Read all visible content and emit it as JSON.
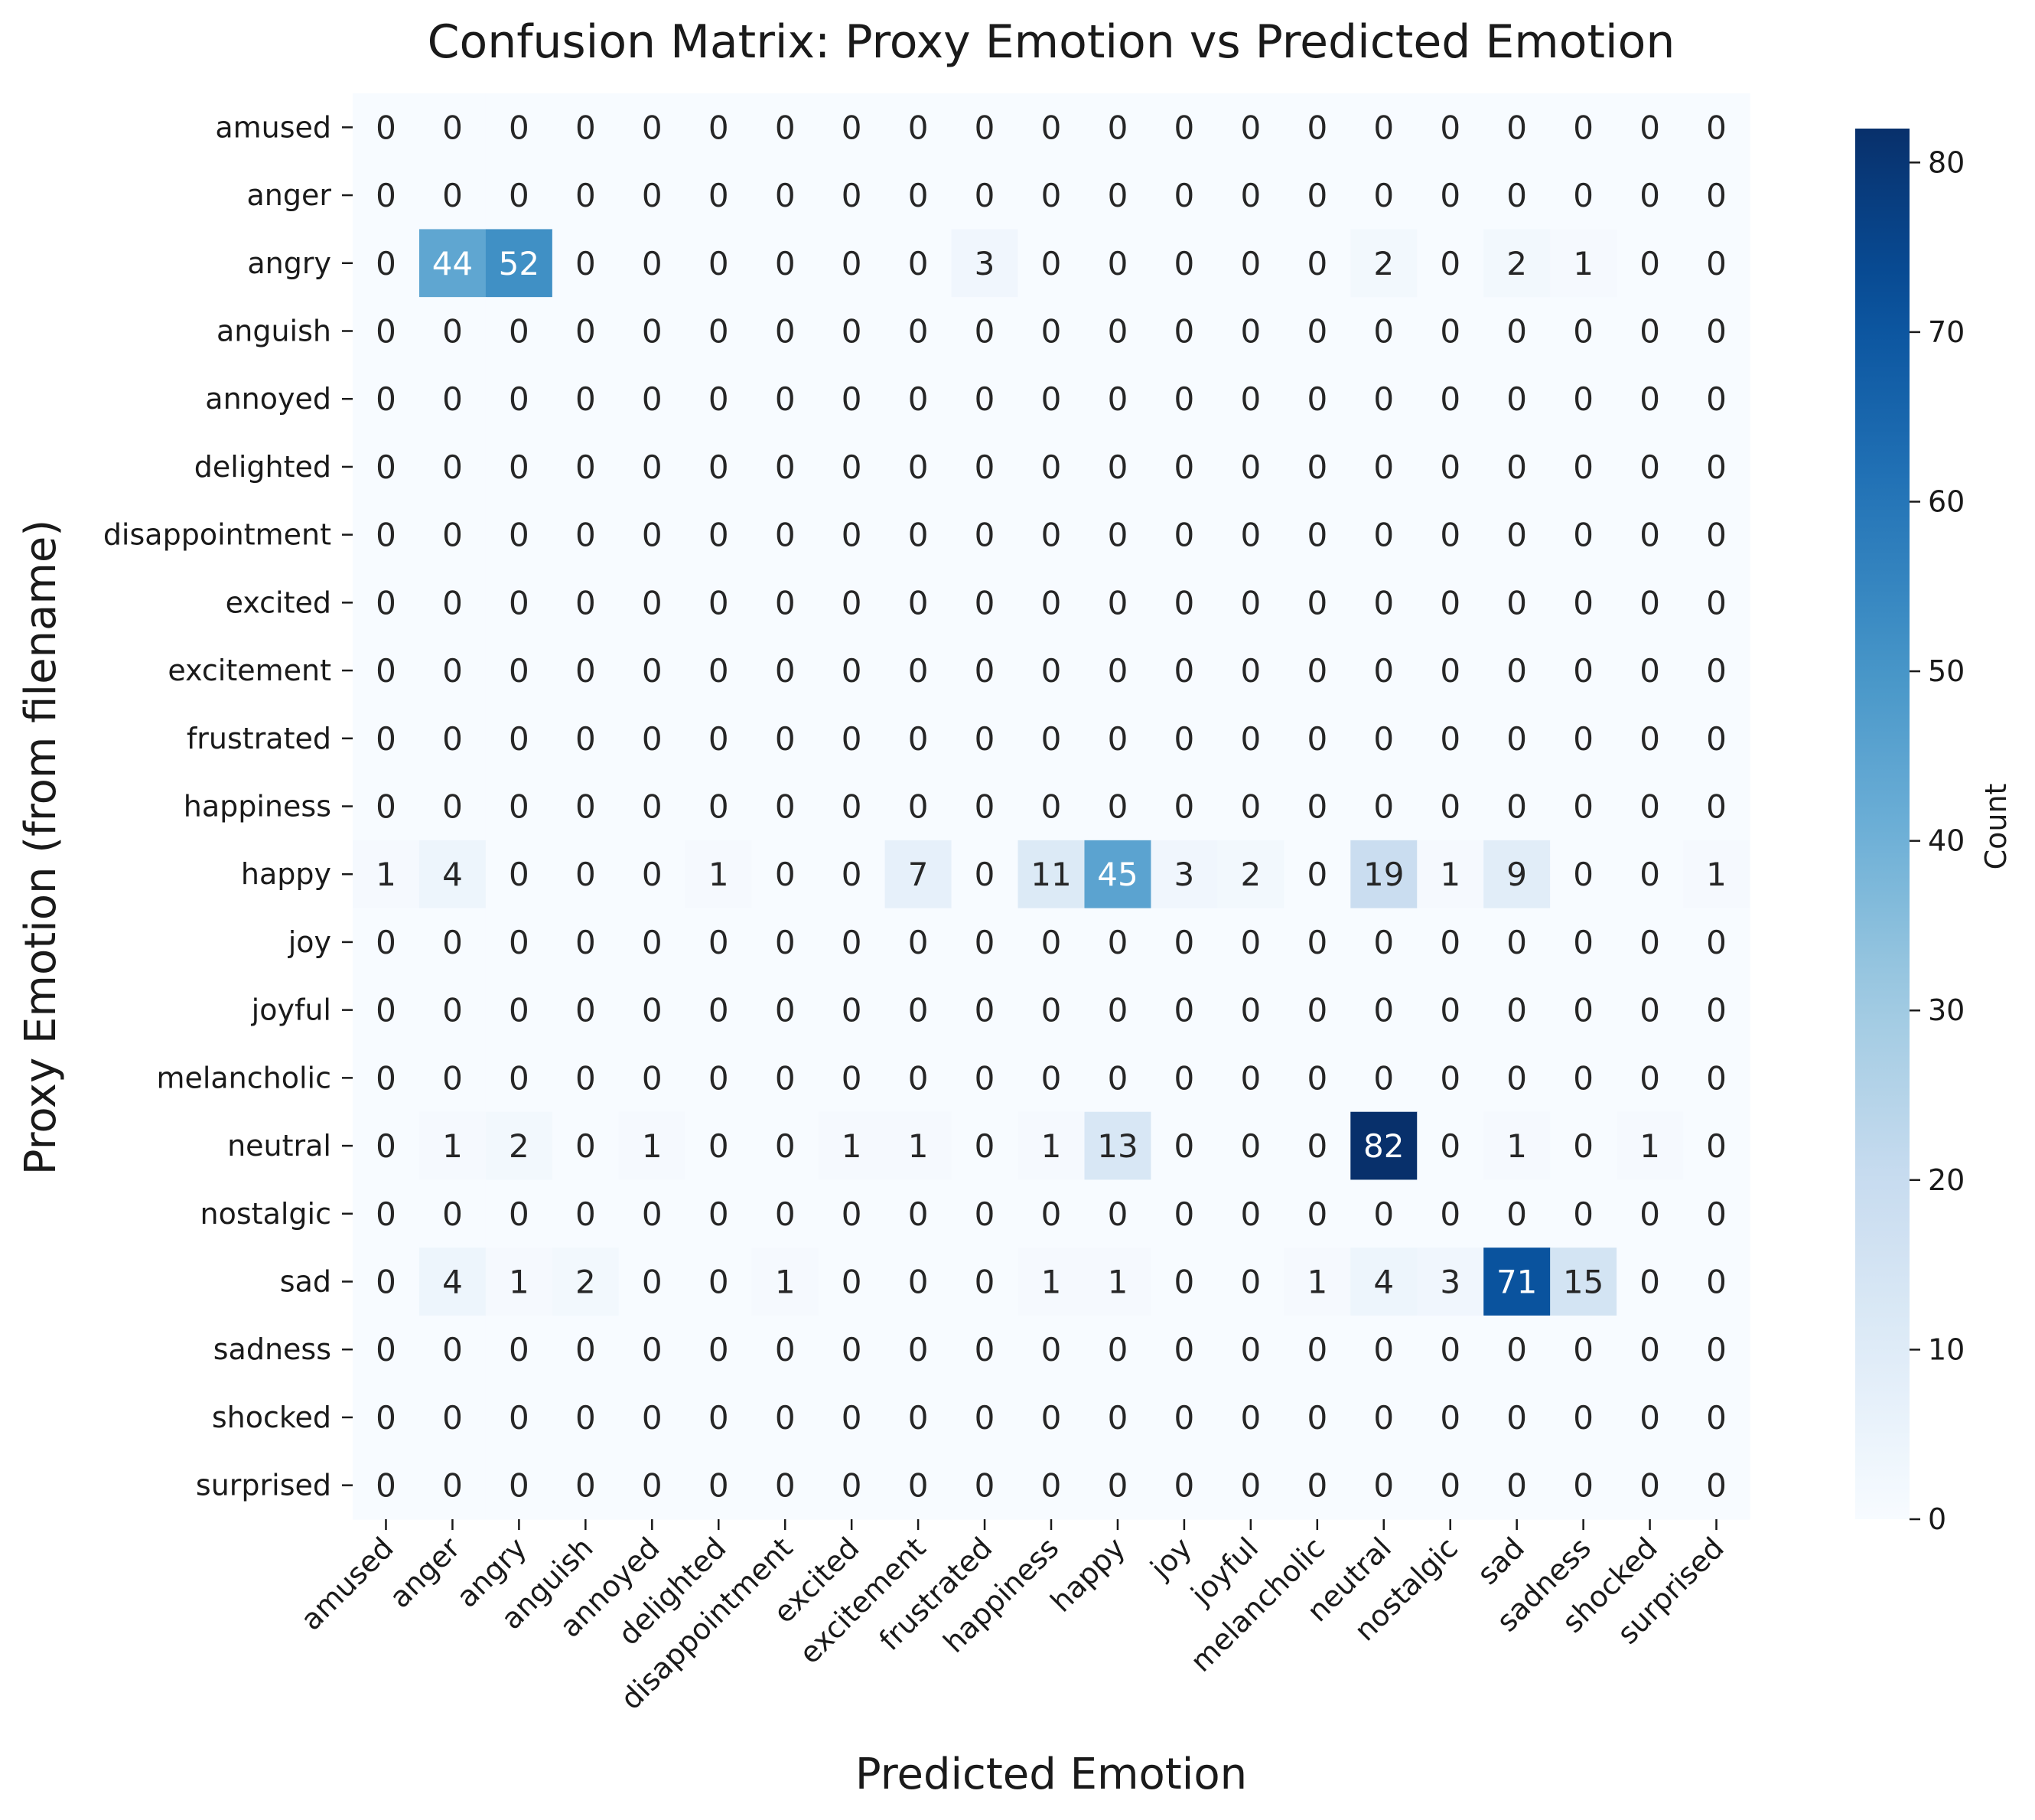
{
  "chart_data": {
    "type": "heatmap",
    "title": "Confusion Matrix: Proxy Emotion vs Predicted Emotion",
    "xlabel": "Predicted Emotion",
    "ylabel": "Proxy Emotion (from filename)",
    "colorbar_label": "Count",
    "colormap": "Blues",
    "color_min": 0,
    "color_max": 82,
    "colorbar_ticks": [
      0,
      10,
      20,
      30,
      40,
      50,
      60,
      70,
      80
    ],
    "x_categories": [
      "amused",
      "anger",
      "angry",
      "anguish",
      "annoyed",
      "delighted",
      "disappointment",
      "excited",
      "excitement",
      "frustrated",
      "happiness",
      "happy",
      "joy",
      "joyful",
      "melancholic",
      "neutral",
      "nostalgic",
      "sad",
      "sadness",
      "shocked",
      "surprised"
    ],
    "y_categories": [
      "amused",
      "anger",
      "angry",
      "anguish",
      "annoyed",
      "delighted",
      "disappointment",
      "excited",
      "excitement",
      "frustrated",
      "happiness",
      "happy",
      "joy",
      "joyful",
      "melancholic",
      "neutral",
      "nostalgic",
      "sad",
      "sadness",
      "shocked",
      "surprised"
    ],
    "matrix": [
      [
        0,
        0,
        0,
        0,
        0,
        0,
        0,
        0,
        0,
        0,
        0,
        0,
        0,
        0,
        0,
        0,
        0,
        0,
        0,
        0,
        0
      ],
      [
        0,
        0,
        0,
        0,
        0,
        0,
        0,
        0,
        0,
        0,
        0,
        0,
        0,
        0,
        0,
        0,
        0,
        0,
        0,
        0,
        0
      ],
      [
        0,
        44,
        52,
        0,
        0,
        0,
        0,
        0,
        0,
        3,
        0,
        0,
        0,
        0,
        0,
        2,
        0,
        2,
        1,
        0,
        0
      ],
      [
        0,
        0,
        0,
        0,
        0,
        0,
        0,
        0,
        0,
        0,
        0,
        0,
        0,
        0,
        0,
        0,
        0,
        0,
        0,
        0,
        0
      ],
      [
        0,
        0,
        0,
        0,
        0,
        0,
        0,
        0,
        0,
        0,
        0,
        0,
        0,
        0,
        0,
        0,
        0,
        0,
        0,
        0,
        0
      ],
      [
        0,
        0,
        0,
        0,
        0,
        0,
        0,
        0,
        0,
        0,
        0,
        0,
        0,
        0,
        0,
        0,
        0,
        0,
        0,
        0,
        0
      ],
      [
        0,
        0,
        0,
        0,
        0,
        0,
        0,
        0,
        0,
        0,
        0,
        0,
        0,
        0,
        0,
        0,
        0,
        0,
        0,
        0,
        0
      ],
      [
        0,
        0,
        0,
        0,
        0,
        0,
        0,
        0,
        0,
        0,
        0,
        0,
        0,
        0,
        0,
        0,
        0,
        0,
        0,
        0,
        0
      ],
      [
        0,
        0,
        0,
        0,
        0,
        0,
        0,
        0,
        0,
        0,
        0,
        0,
        0,
        0,
        0,
        0,
        0,
        0,
        0,
        0,
        0
      ],
      [
        0,
        0,
        0,
        0,
        0,
        0,
        0,
        0,
        0,
        0,
        0,
        0,
        0,
        0,
        0,
        0,
        0,
        0,
        0,
        0,
        0
      ],
      [
        0,
        0,
        0,
        0,
        0,
        0,
        0,
        0,
        0,
        0,
        0,
        0,
        0,
        0,
        0,
        0,
        0,
        0,
        0,
        0,
        0
      ],
      [
        1,
        4,
        0,
        0,
        0,
        1,
        0,
        0,
        7,
        0,
        11,
        45,
        3,
        2,
        0,
        19,
        1,
        9,
        0,
        0,
        1
      ],
      [
        0,
        0,
        0,
        0,
        0,
        0,
        0,
        0,
        0,
        0,
        0,
        0,
        0,
        0,
        0,
        0,
        0,
        0,
        0,
        0,
        0
      ],
      [
        0,
        0,
        0,
        0,
        0,
        0,
        0,
        0,
        0,
        0,
        0,
        0,
        0,
        0,
        0,
        0,
        0,
        0,
        0,
        0,
        0
      ],
      [
        0,
        0,
        0,
        0,
        0,
        0,
        0,
        0,
        0,
        0,
        0,
        0,
        0,
        0,
        0,
        0,
        0,
        0,
        0,
        0,
        0
      ],
      [
        0,
        1,
        2,
        0,
        1,
        0,
        0,
        1,
        1,
        0,
        1,
        13,
        0,
        0,
        0,
        82,
        0,
        1,
        0,
        1,
        0
      ],
      [
        0,
        0,
        0,
        0,
        0,
        0,
        0,
        0,
        0,
        0,
        0,
        0,
        0,
        0,
        0,
        0,
        0,
        0,
        0,
        0,
        0
      ],
      [
        0,
        4,
        1,
        2,
        0,
        0,
        1,
        0,
        0,
        0,
        1,
        1,
        0,
        0,
        1,
        4,
        3,
        71,
        15,
        0,
        0
      ],
      [
        0,
        0,
        0,
        0,
        0,
        0,
        0,
        0,
        0,
        0,
        0,
        0,
        0,
        0,
        0,
        0,
        0,
        0,
        0,
        0,
        0
      ],
      [
        0,
        0,
        0,
        0,
        0,
        0,
        0,
        0,
        0,
        0,
        0,
        0,
        0,
        0,
        0,
        0,
        0,
        0,
        0,
        0,
        0
      ],
      [
        0,
        0,
        0,
        0,
        0,
        0,
        0,
        0,
        0,
        0,
        0,
        0,
        0,
        0,
        0,
        0,
        0,
        0,
        0,
        0,
        0
      ]
    ],
    "grid": false,
    "annotations": true
  }
}
